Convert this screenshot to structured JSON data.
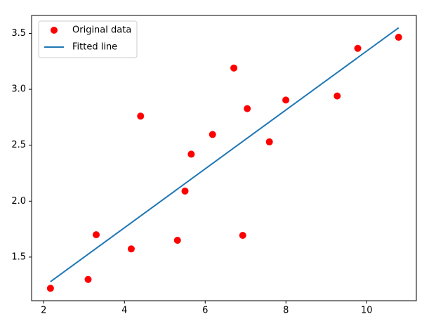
{
  "chart_data": {
    "type": "scatter",
    "series": [
      {
        "name": "Original data",
        "type": "scatter",
        "color": "#ff0000",
        "x": [
          3.3,
          4.4,
          5.5,
          6.71,
          6.93,
          4.168,
          9.779,
          6.182,
          7.59,
          2.167,
          7.042,
          10.791,
          5.313,
          7.997,
          5.654,
          9.27,
          3.1
        ],
        "values": [
          1.7,
          2.76,
          2.09,
          3.19,
          1.694,
          1.573,
          3.366,
          2.596,
          2.53,
          1.221,
          2.827,
          3.465,
          1.65,
          2.904,
          2.42,
          2.94,
          1.3
        ]
      },
      {
        "name": "Fitted line",
        "type": "line",
        "color": "#1f77b4",
        "x": [
          2.167,
          10.791
        ],
        "values": [
          1.28,
          3.55
        ]
      }
    ],
    "xlim": [
      1.7,
      11.23
    ],
    "xticks": [
      2,
      4,
      6,
      8,
      10
    ],
    "ylim": [
      1.11,
      3.66
    ],
    "yticks": [
      1.5,
      {
        "value": 2,
        "label": "2.0"
      },
      2.5,
      {
        "value": 3,
        "label": "3.0"
      },
      3.5
    ],
    "legend": "upper left"
  }
}
